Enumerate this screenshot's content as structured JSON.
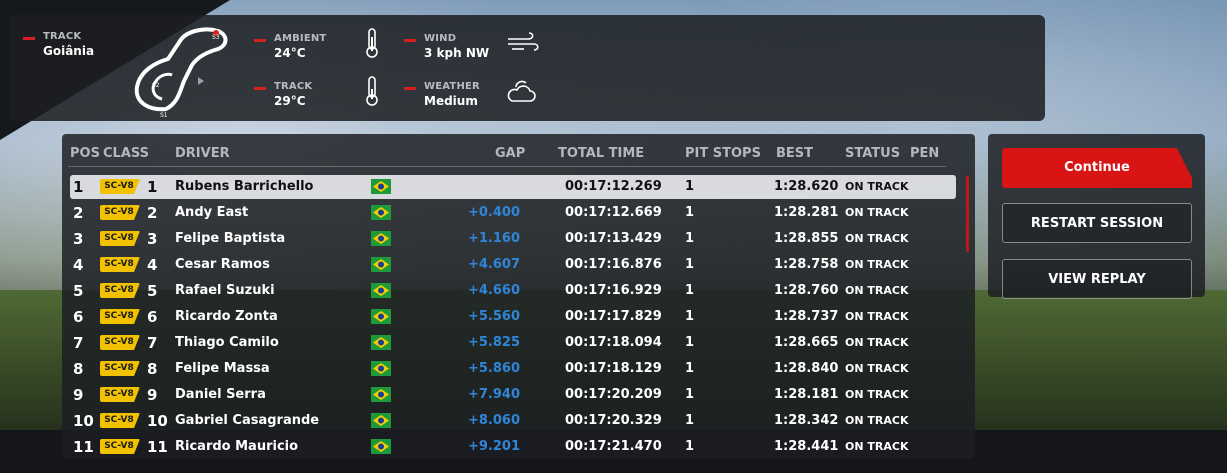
{
  "conditions": {
    "track_name": {
      "label": "TRACK",
      "value": "Goiânia"
    },
    "ambient": {
      "label": "AMBIENT",
      "value": "24°C"
    },
    "track_temp": {
      "label": "TRACK",
      "value": "29°C"
    },
    "wind": {
      "label": "WIND",
      "value": "3 kph NW"
    },
    "weather": {
      "label": "WEATHER",
      "value": "Medium"
    },
    "map_sectors": [
      "S1",
      "S2",
      "S3"
    ]
  },
  "table": {
    "headers": {
      "pos": "POS",
      "class": "CLASS",
      "driver": "DRIVER",
      "gap": "GAP",
      "total_time": "TOTAL TIME",
      "pit_stops": "PIT STOPS",
      "best": "BEST",
      "status": "STATUS",
      "pen": "PEN"
    },
    "rows": [
      {
        "pos": "1",
        "class_badge": "SC-V8",
        "class_pos": "1",
        "driver": "Rubens Barrichello",
        "gap": "",
        "total_time": "00:17:12.269",
        "pit_stops": "1",
        "best": "1:28.620",
        "status": "ON TRACK",
        "selected": true
      },
      {
        "pos": "2",
        "class_badge": "SC-V8",
        "class_pos": "2",
        "driver": "Andy East",
        "gap": "+0.400",
        "total_time": "00:17:12.669",
        "pit_stops": "1",
        "best": "1:28.281",
        "status": "ON TRACK"
      },
      {
        "pos": "3",
        "class_badge": "SC-V8",
        "class_pos": "3",
        "driver": "Felipe Baptista",
        "gap": "+1.160",
        "total_time": "00:17:13.429",
        "pit_stops": "1",
        "best": "1:28.855",
        "status": "ON TRACK"
      },
      {
        "pos": "4",
        "class_badge": "SC-V8",
        "class_pos": "4",
        "driver": "Cesar Ramos",
        "gap": "+4.607",
        "total_time": "00:17:16.876",
        "pit_stops": "1",
        "best": "1:28.758",
        "status": "ON TRACK"
      },
      {
        "pos": "5",
        "class_badge": "SC-V8",
        "class_pos": "5",
        "driver": "Rafael Suzuki",
        "gap": "+4.660",
        "total_time": "00:17:16.929",
        "pit_stops": "1",
        "best": "1:28.760",
        "status": "ON TRACK"
      },
      {
        "pos": "6",
        "class_badge": "SC-V8",
        "class_pos": "6",
        "driver": "Ricardo Zonta",
        "gap": "+5.560",
        "total_time": "00:17:17.829",
        "pit_stops": "1",
        "best": "1:28.737",
        "status": "ON TRACK"
      },
      {
        "pos": "7",
        "class_badge": "SC-V8",
        "class_pos": "7",
        "driver": "Thiago Camilo",
        "gap": "+5.825",
        "total_time": "00:17:18.094",
        "pit_stops": "1",
        "best": "1:28.665",
        "status": "ON TRACK"
      },
      {
        "pos": "8",
        "class_badge": "SC-V8",
        "class_pos": "8",
        "driver": "Felipe Massa",
        "gap": "+5.860",
        "total_time": "00:17:18.129",
        "pit_stops": "1",
        "best": "1:28.840",
        "status": "ON TRACK"
      },
      {
        "pos": "9",
        "class_badge": "SC-V8",
        "class_pos": "9",
        "driver": "Daniel Serra",
        "gap": "+7.940",
        "total_time": "00:17:20.209",
        "pit_stops": "1",
        "best": "1:28.181",
        "status": "ON TRACK"
      },
      {
        "pos": "10",
        "class_badge": "SC-V8",
        "class_pos": "10",
        "driver": "Gabriel Casagrande",
        "gap": "+8.060",
        "total_time": "00:17:20.329",
        "pit_stops": "1",
        "best": "1:28.342",
        "status": "ON TRACK"
      },
      {
        "pos": "11",
        "class_badge": "SC-V8",
        "class_pos": "11",
        "driver": "Ricardo Mauricio",
        "gap": "+9.201",
        "total_time": "00:17:21.470",
        "pit_stops": "1",
        "best": "1:28.441",
        "status": "ON TRACK"
      }
    ]
  },
  "actions": {
    "continue": "Continue",
    "restart": "RESTART SESSION",
    "replay": "VIEW REPLAY"
  },
  "colors": {
    "accent_red": "#d81414",
    "gap_blue": "#2f86d8",
    "class_badge_yellow": "#f2c200"
  }
}
